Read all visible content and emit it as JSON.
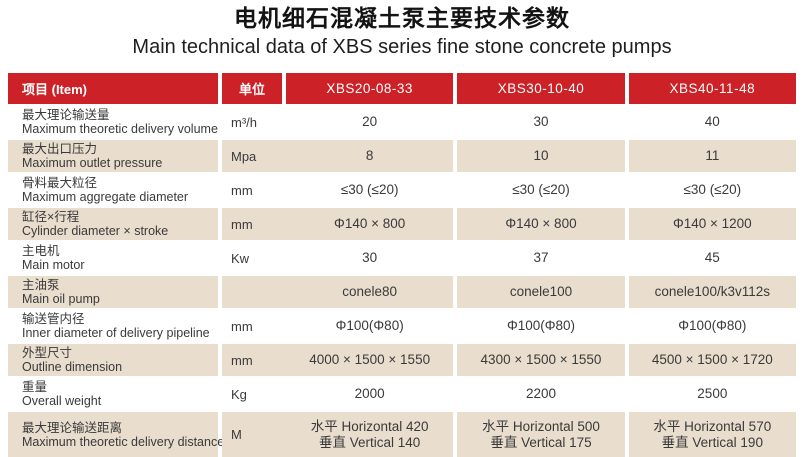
{
  "page": {
    "title_zh": "电机细石混凝土泵主要技术参数",
    "title_en": "Main technical data of XBS series fine stone concrete pumps"
  },
  "colors": {
    "header_red": "#cc2127",
    "row_beige": "#e9ddce",
    "header_text": "#ffffff",
    "body_text": "#3a3a3a"
  },
  "table": {
    "columns": {
      "item": "项目  (Item)",
      "unit": "单位",
      "models": [
        "XBS20-08-33",
        "XBS30-10-40",
        "XBS40-11-48"
      ]
    },
    "rows": [
      {
        "zh": "最大理论输送量",
        "en": "Maximum theoretic delivery volume",
        "unit": "m³/h",
        "values": [
          "20",
          "30",
          "40"
        ]
      },
      {
        "zh": "最大出口压力",
        "en": "Maximum outlet pressure",
        "unit": "Mpa",
        "values": [
          "8",
          "10",
          "11"
        ]
      },
      {
        "zh": "骨料最大粒径",
        "en": "Maximum aggregate diameter",
        "unit": "mm",
        "values": [
          "≤30 (≤20)",
          "≤30 (≤20)",
          "≤30 (≤20)"
        ]
      },
      {
        "zh": "缸径×行程",
        "en": "Cylinder diameter × stroke",
        "unit": "mm",
        "values": [
          "Φ140 × 800",
          "Φ140 × 800",
          "Φ140 × 1200"
        ]
      },
      {
        "zh": "主电机",
        "en": "Main motor",
        "unit": "Kw",
        "values": [
          "30",
          "37",
          "45"
        ]
      },
      {
        "zh": "主油泵",
        "en": "Main oil pump",
        "unit": "",
        "values": [
          "conele80",
          "conele100",
          "conele100/k3v112s"
        ]
      },
      {
        "zh": "输送管内径",
        "en": "Inner diameter of delivery pipeline",
        "unit": "mm",
        "values": [
          "Φ100(Φ80)",
          "Φ100(Φ80)",
          "Φ100(Φ80)"
        ]
      },
      {
        "zh": "外型尺寸",
        "en": "Outline dimension",
        "unit": "mm",
        "values": [
          "4000 × 1500 × 1550",
          "4300 × 1500 × 1550",
          "4500 × 1500 × 1720"
        ]
      },
      {
        "zh": "重量",
        "en": "Overall weight",
        "unit": "Kg",
        "values": [
          "2000",
          "2200",
          "2500"
        ]
      },
      {
        "zh": "最大理论输送距离",
        "en": "Maximum theoretic delivery distance",
        "unit": "M",
        "values": [
          "水平 Horizontal 420\n垂直 Vertical 140",
          "水平 Horizontal 500\n垂直 Vertical 175",
          "水平 Horizontal 570\n垂直 Vertical 190"
        ]
      }
    ]
  }
}
